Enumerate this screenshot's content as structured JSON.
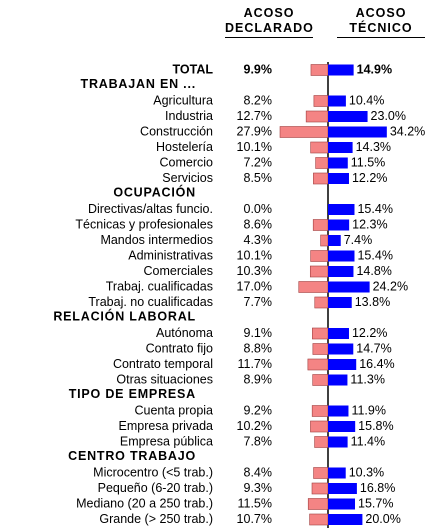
{
  "chart_data": {
    "type": "butterfly",
    "series": [
      {
        "name": "ACOSO DECLARADO",
        "color": "#f48484"
      },
      {
        "name": "ACOSO TÉCNICO",
        "color": "#0000ff"
      }
    ],
    "total": {
      "label": "TOTAL",
      "values": [
        9.9,
        14.9
      ],
      "value_labels": [
        "9.9%",
        "14.9%"
      ]
    },
    "groups": [
      {
        "title": "TRABAJAN EN ...",
        "categories": [
          "Agricultura",
          "Industria",
          "Construcción",
          "Hostelería",
          "Comercio",
          "Servicios"
        ],
        "series": [
          {
            "values": [
              8.2,
              12.7,
              27.9,
              10.1,
              7.2,
              8.5
            ],
            "value_labels": [
              "8.2%",
              "12.7%",
              "27.9%",
              "10.1%",
              "7.2%",
              "8.5%"
            ]
          },
          {
            "values": [
              10.4,
              23.0,
              34.2,
              14.3,
              11.5,
              12.2
            ],
            "value_labels": [
              "10.4%",
              "23.0%",
              "34.2%",
              "14.3%",
              "11.5%",
              "12.2%"
            ]
          }
        ]
      },
      {
        "title": "OCUPACIÓN",
        "categories": [
          "Directivas/altas funcio.",
          "Técnicas y profesionales",
          "Mandos intermedios",
          "Administrativas",
          "Comerciales",
          "Trabaj. cualificadas",
          "Trabaj. no cualificadas"
        ],
        "series": [
          {
            "values": [
              0.0,
              8.6,
              4.3,
              10.1,
              10.3,
              17.0,
              7.7
            ],
            "value_labels": [
              "0.0%",
              "8.6%",
              "4.3%",
              "10.1%",
              "10.3%",
              "17.0%",
              "7.7%"
            ]
          },
          {
            "values": [
              15.4,
              12.3,
              7.4,
              15.4,
              14.8,
              24.2,
              13.8
            ],
            "value_labels": [
              "15.4%",
              "12.3%",
              "7.4%",
              "15.4%",
              "14.8%",
              "24.2%",
              "13.8%"
            ]
          }
        ]
      },
      {
        "title": "RELACIÓN LABORAL",
        "categories": [
          "Autónoma",
          "Contrato fijo",
          "Contrato temporal",
          "Otras situaciones"
        ],
        "series": [
          {
            "values": [
              9.1,
              8.8,
              11.7,
              8.9
            ],
            "value_labels": [
              "9.1%",
              "8.8%",
              "11.7%",
              "8.9%"
            ]
          },
          {
            "values": [
              12.2,
              14.7,
              16.4,
              11.3
            ],
            "value_labels": [
              "12.2%",
              "14.7%",
              "16.4%",
              "11.3%"
            ]
          }
        ]
      },
      {
        "title": "TIPO DE EMPRESA",
        "categories": [
          "Cuenta propia",
          "Empresa privada",
          "Empresa pública"
        ],
        "series": [
          {
            "values": [
              9.2,
              10.2,
              7.8
            ],
            "value_labels": [
              "9.2%",
              "10.2%",
              "7.8%"
            ]
          },
          {
            "values": [
              11.9,
              15.8,
              11.4
            ],
            "value_labels": [
              "11.9%",
              "15.8%",
              "11.4%"
            ]
          }
        ]
      },
      {
        "title": "CENTRO TRABAJO",
        "categories": [
          "Microcentro (<5 trab.)",
          "Pequeño (6-20 trab.)",
          "Mediano (20 a 250 trab.)",
          "Grande (> 250 trab.)"
        ],
        "series": [
          {
            "values": [
              8.4,
              9.3,
              11.5,
              10.7
            ],
            "value_labels": [
              "8.4%",
              "9.3%",
              "11.5%",
              "10.7%"
            ]
          },
          {
            "values": [
              10.3,
              16.8,
              15.7,
              20.0
            ],
            "value_labels": [
              "10.3%",
              "16.8%",
              "15.7%",
              "20.0%"
            ]
          }
        ]
      }
    ]
  }
}
